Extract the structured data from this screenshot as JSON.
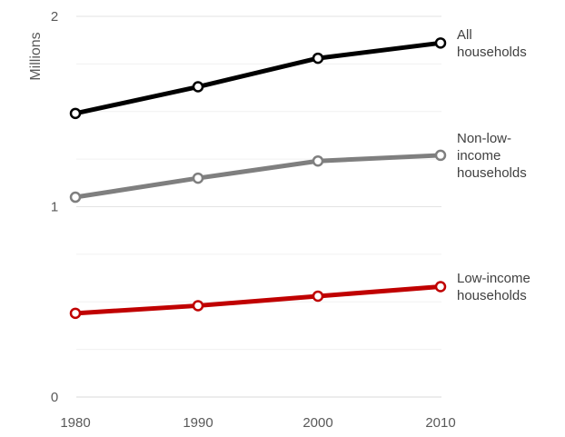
{
  "chart_data": {
    "type": "line",
    "x": [
      1980,
      1990,
      2000,
      2010
    ],
    "xtick_labels": [
      "1980",
      "1990",
      "2000",
      "2010"
    ],
    "ylabel": "Millions",
    "ylim": [
      0,
      2
    ],
    "yticks": [
      0,
      1,
      2
    ],
    "ytick_labels": [
      "0",
      "1",
      "2"
    ],
    "grid": "horizontal",
    "legend": "direct labels at right end of each line",
    "series": [
      {
        "name": "All households",
        "label_lines": [
          "All",
          "households"
        ],
        "color": "#000000",
        "values": [
          1.49,
          1.63,
          1.78,
          1.86
        ]
      },
      {
        "name": "Non-low-income households",
        "label_lines": [
          "Non-low-",
          "income",
          "households"
        ],
        "color": "#7f7f7f",
        "values": [
          1.05,
          1.15,
          1.24,
          1.27
        ]
      },
      {
        "name": "Low-income households",
        "label_lines": [
          "Low-income",
          "households"
        ],
        "color": "#c00000",
        "values": [
          0.44,
          0.48,
          0.53,
          0.58
        ]
      }
    ]
  }
}
